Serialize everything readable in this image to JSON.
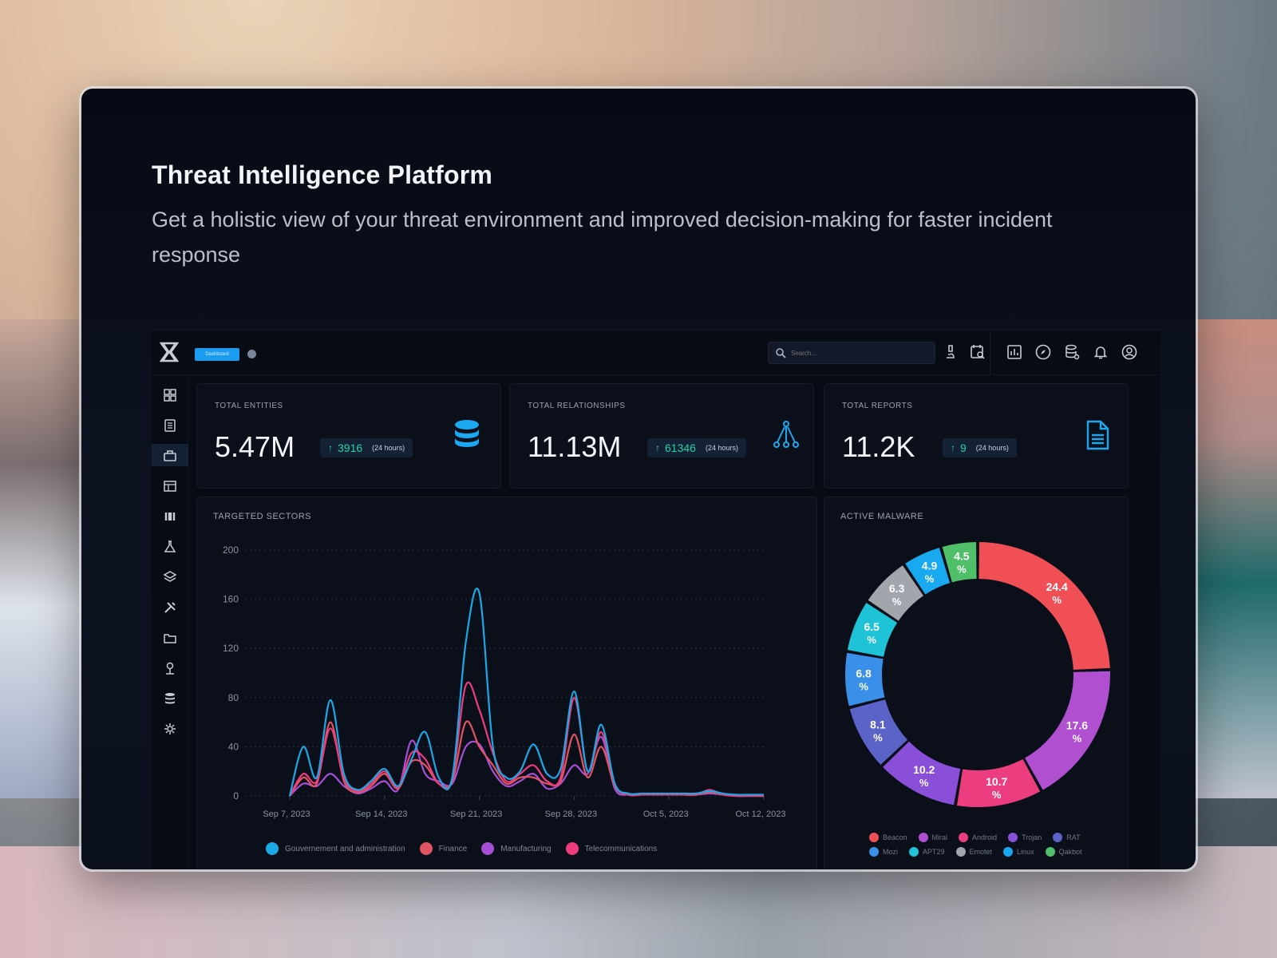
{
  "hero": {
    "title": "Threat Intelligence Platform",
    "subtitle": "Get a holistic view of your threat environment and improved decision-making for faster incident response"
  },
  "topbar": {
    "dashboard_label": "Dashboard",
    "search_placeholder": "Search..."
  },
  "sidebar": {
    "icons": [
      "dashboard-icon",
      "reports-icon",
      "briefcase-icon",
      "table-icon",
      "binoculars-icon",
      "flask-icon",
      "layers-icon",
      "tools-icon",
      "folder-icon",
      "user-desk-icon",
      "database-icon",
      "settings-icon"
    ],
    "active_index": 2
  },
  "stats": [
    {
      "label": "TOTAL ENTITIES",
      "value": "5.47M",
      "delta": "3916",
      "period": "(24 hours)",
      "icon": "database-icon"
    },
    {
      "label": "TOTAL RELATIONSHIPS",
      "value": "11.13M",
      "delta": "61346",
      "period": "(24 hours)",
      "icon": "graph-icon"
    },
    {
      "label": "TOTAL REPORTS",
      "value": "11.2K",
      "delta": "9",
      "period": "(24 hours)",
      "icon": "document-icon"
    }
  ],
  "colors": {
    "accent": "#1a9cf0",
    "positive": "#22d3a6"
  },
  "chart_data": [
    {
      "type": "line",
      "title": "TARGETED SECTORS",
      "ylim": [
        0,
        200
      ],
      "yticks": [
        0,
        40,
        80,
        120,
        160,
        200
      ],
      "xticks": [
        "Sep 7, 2023",
        "Sep 14, 2023",
        "Sep 21, 2023",
        "Sep 28, 2023",
        "Oct 5, 2023",
        "Oct 12, 2023"
      ],
      "xlim": [
        0,
        35
      ],
      "xtick_positions": [
        0,
        7,
        14,
        21,
        28,
        35
      ],
      "legend": "bottom",
      "grid": true,
      "series": [
        {
          "name": "Gouvernement and administration",
          "color": "#1aa8e6",
          "values": [
            0,
            40,
            15,
            78,
            18,
            5,
            12,
            22,
            8,
            30,
            52,
            15,
            15,
            125,
            165,
            40,
            15,
            20,
            42,
            18,
            22,
            85,
            20,
            58,
            10,
            2,
            2,
            2,
            2,
            2,
            2,
            4,
            2,
            1,
            1,
            1
          ]
        },
        {
          "name": "Finance",
          "color": "#e05561",
          "values": [
            0,
            15,
            10,
            60,
            12,
            3,
            8,
            18,
            6,
            28,
            25,
            10,
            12,
            60,
            40,
            25,
            10,
            15,
            15,
            10,
            12,
            50,
            15,
            40,
            8,
            1,
            1,
            1,
            1,
            1,
            1,
            3,
            1,
            0,
            0,
            0
          ]
        },
        {
          "name": "Manufacturing",
          "color": "#a64fd6",
          "values": [
            0,
            10,
            8,
            18,
            8,
            2,
            6,
            12,
            5,
            45,
            18,
            12,
            10,
            40,
            42,
            20,
            8,
            12,
            18,
            6,
            10,
            25,
            18,
            48,
            6,
            1,
            1,
            1,
            1,
            1,
            1,
            2,
            1,
            0,
            0,
            0
          ]
        },
        {
          "name": "Telecommunications",
          "color": "#ee3c7c",
          "values": [
            0,
            18,
            12,
            55,
            14,
            4,
            10,
            20,
            7,
            35,
            30,
            10,
            14,
            90,
            70,
            35,
            12,
            18,
            25,
            12,
            15,
            80,
            20,
            52,
            9,
            1,
            1,
            1,
            1,
            1,
            1,
            5,
            1,
            0,
            0,
            0
          ]
        }
      ]
    },
    {
      "type": "pie",
      "title": "ACTIVE MALWARE",
      "legend": "bottom",
      "slices": [
        {
          "name": "Beacon",
          "value": 24.4,
          "label": "24.4",
          "color": "#ef4f55"
        },
        {
          "name": "Mirai",
          "value": 17.6,
          "label": "17.6",
          "color": "#b04fd0"
        },
        {
          "name": "Android",
          "value": 10.7,
          "label": "10.7",
          "color": "#ec3d7e"
        },
        {
          "name": "Trojan",
          "value": 10.2,
          "label": "10.2",
          "color": "#8a4fd8"
        },
        {
          "name": "RAT",
          "value": 8.1,
          "label": "8.1",
          "color": "#5b62c8"
        },
        {
          "name": "Mozi",
          "value": 6.8,
          "label": "6.8",
          "color": "#3a8fe8"
        },
        {
          "name": "APT29",
          "value": 6.5,
          "label": "6.5",
          "color": "#1ec3d8"
        },
        {
          "name": "Emotet",
          "value": 6.3,
          "label": "6.3",
          "color": "#a2a5ab"
        },
        {
          "name": "Linux",
          "value": 4.9,
          "label": "4.9",
          "color": "#18a9f0"
        },
        {
          "name": "Qakbot",
          "value": 4.5,
          "label": "4.5",
          "color": "#4fbf6a"
        }
      ],
      "unit": "%"
    }
  ]
}
